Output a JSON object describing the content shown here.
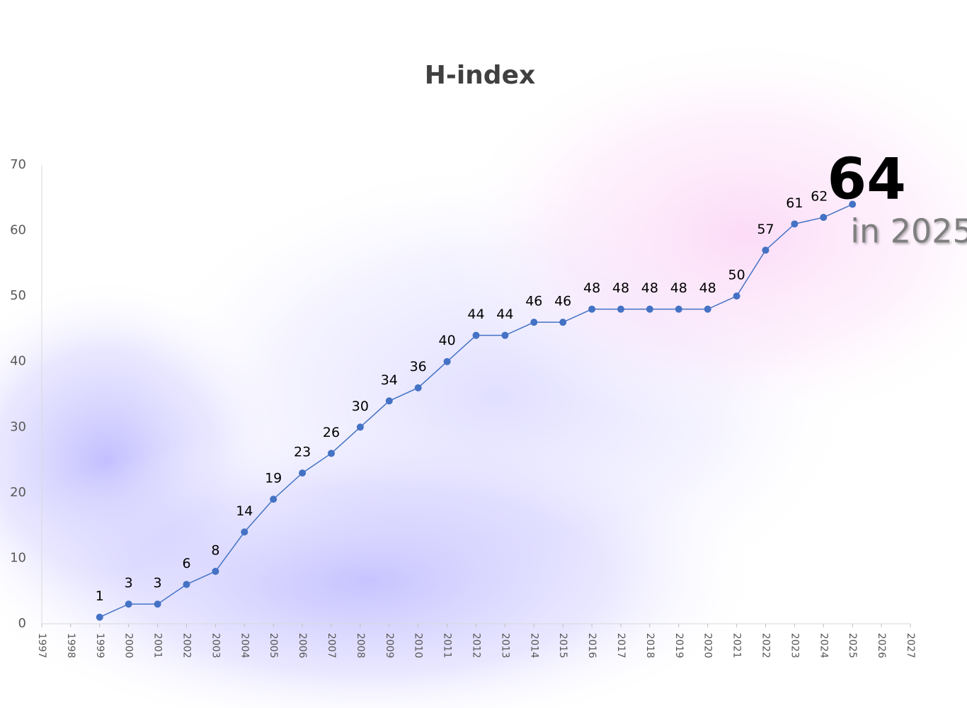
{
  "chart_data": {
    "type": "line",
    "title": "H-index",
    "x": [
      1999,
      2000,
      2001,
      2002,
      2003,
      2004,
      2005,
      2006,
      2007,
      2008,
      2009,
      2010,
      2011,
      2012,
      2013,
      2014,
      2015,
      2016,
      2017,
      2018,
      2019,
      2020,
      2021,
      2022,
      2023,
      2024,
      2025
    ],
    "series": [
      {
        "name": "H-index",
        "color": "#4472c4",
        "values": [
          1,
          3,
          3,
          6,
          8,
          14,
          19,
          23,
          26,
          30,
          34,
          36,
          40,
          44,
          44,
          46,
          46,
          48,
          48,
          48,
          48,
          48,
          50,
          57,
          61,
          62,
          64
        ]
      }
    ],
    "xlim": [
      1997,
      2027
    ],
    "xticks": [
      1997,
      1998,
      1999,
      2000,
      2001,
      2002,
      2003,
      2004,
      2005,
      2006,
      2007,
      2008,
      2009,
      2010,
      2011,
      2012,
      2013,
      2014,
      2015,
      2016,
      2017,
      2018,
      2019,
      2020,
      2021,
      2022,
      2023,
      2024,
      2025,
      2026,
      2027
    ],
    "ylim": [
      0,
      70
    ],
    "yticks": [
      0,
      10,
      20,
      30,
      40,
      50,
      60,
      70
    ],
    "grid": false,
    "annotation": "in 2025"
  }
}
